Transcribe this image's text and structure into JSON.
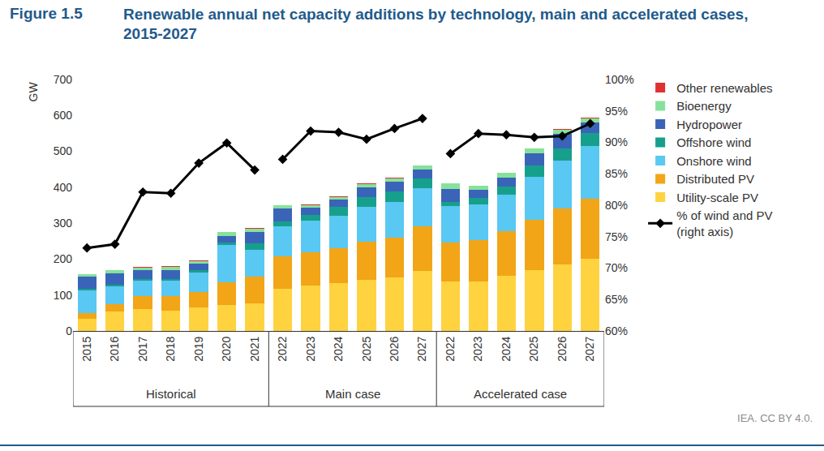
{
  "chart_data": {
    "type": "bar",
    "stacked": true,
    "figure_number": "Figure 1.5",
    "title": "Renewable annual net capacity additions by technology, main and accelerated cases, 2015-2027",
    "y_label": "GW",
    "source": "IEA. CC BY 4.0.",
    "categories": [
      "2015",
      "2016",
      "2017",
      "2018",
      "2019",
      "2020",
      "2021",
      "2022",
      "2023",
      "2024",
      "2025",
      "2026",
      "2027",
      "2022",
      "2023",
      "2024",
      "2025",
      "2026",
      "2027"
    ],
    "groups": [
      {
        "label": "Historical",
        "count": 7
      },
      {
        "label": "Main case",
        "count": 6
      },
      {
        "label": "Accelerated case",
        "count": 6
      }
    ],
    "ylim": [
      0,
      700
    ],
    "yticks": [
      0,
      100,
      200,
      300,
      400,
      500,
      600,
      700
    ],
    "y2lim": [
      60,
      100
    ],
    "y2ticks": [
      {
        "value": 60,
        "label": "60%"
      },
      {
        "value": 65,
        "label": "65%"
      },
      {
        "value": 70,
        "label": "70%"
      },
      {
        "value": 75,
        "label": "75%"
      },
      {
        "value": 80,
        "label": "80%"
      },
      {
        "value": 85,
        "label": "85%"
      },
      {
        "value": 90,
        "label": "90%"
      },
      {
        "value": 95,
        "label": "95%"
      },
      {
        "value": 100,
        "label": "100%"
      }
    ],
    "grid": false,
    "legend": "right",
    "series": [
      {
        "name": "Utility-scale PV",
        "color": "#ffd23f",
        "values": [
          33,
          55,
          60,
          57,
          65,
          73,
          77,
          117,
          127,
          133,
          142,
          150,
          167,
          137,
          137,
          153,
          170,
          185,
          200
        ]
      },
      {
        "name": "Distributed PV",
        "color": "#f2a516",
        "values": [
          17,
          20,
          37,
          40,
          43,
          62,
          75,
          90,
          93,
          97,
          107,
          110,
          125,
          110,
          115,
          125,
          140,
          155,
          167
        ]
      },
      {
        "name": "Onshore wind",
        "color": "#59c8f2",
        "values": [
          63,
          50,
          43,
          43,
          55,
          105,
          73,
          85,
          88,
          90,
          96,
          100,
          105,
          100,
          100,
          102,
          118,
          135,
          147
        ]
      },
      {
        "name": "Offshore wind",
        "color": "#16a08c",
        "values": [
          4,
          3,
          4,
          5,
          7,
          7,
          20,
          13,
          15,
          25,
          27,
          28,
          28,
          13,
          18,
          22,
          32,
          33,
          38
        ]
      },
      {
        "name": "Hydropower",
        "color": "#3a64b8",
        "values": [
          35,
          32,
          25,
          25,
          17,
          18,
          30,
          35,
          20,
          20,
          27,
          27,
          25,
          35,
          22,
          25,
          35,
          40,
          28
        ]
      },
      {
        "name": "Bioenergy",
        "color": "#86e29b",
        "values": [
          6,
          9,
          8,
          9,
          8,
          10,
          10,
          10,
          8,
          8,
          10,
          10,
          10,
          15,
          12,
          13,
          12,
          13,
          12
        ]
      },
      {
        "name": "Other renewables",
        "color": "#e03030",
        "values": [
          1,
          1,
          1,
          1,
          1,
          1,
          1,
          1,
          1,
          1,
          1,
          1,
          1,
          1,
          1,
          1,
          1,
          1,
          2
        ]
      },
      {
        "name": "% of wind and PV\n(right axis)",
        "type": "line",
        "axis": "y2",
        "marker": "diamond",
        "color": "#000000",
        "values": [
          73.2,
          73.8,
          82.1,
          81.9,
          86.7,
          89.9,
          85.6,
          87.3,
          91.8,
          91.6,
          90.5,
          92.2,
          93.8,
          88.2,
          91.4,
          91.2,
          90.8,
          91.0,
          93.0
        ]
      }
    ]
  }
}
